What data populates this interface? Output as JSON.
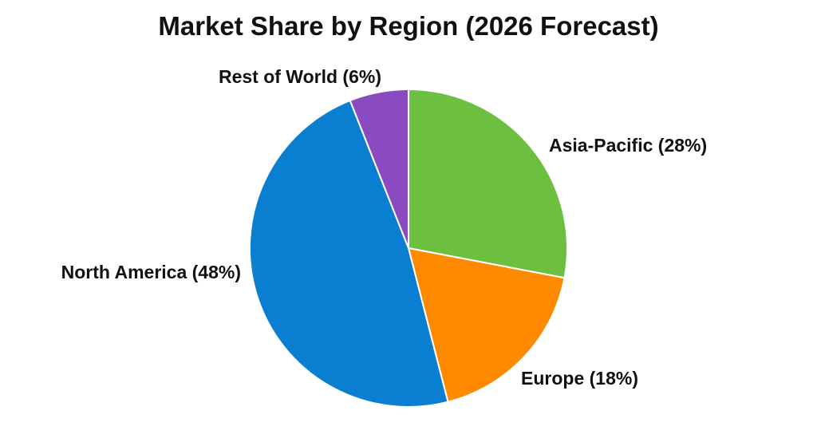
{
  "chart_data": {
    "type": "pie",
    "title": "Market Share by Region (2026 Forecast)",
    "unit": "%",
    "slices": [
      {
        "label": "Asia-Pacific (28%)",
        "name": "Asia-Pacific",
        "value": 28,
        "color": "#6dbf3f"
      },
      {
        "label": "Europe (18%)",
        "name": "Europe",
        "value": 18,
        "color": "#ff8a00"
      },
      {
        "label": "North America (48%)",
        "name": "North America",
        "value": 48,
        "color": "#0a7fd1"
      },
      {
        "label": "Rest of World (6%)",
        "name": "Rest of World",
        "value": 6,
        "color": "#8a4bc0"
      }
    ],
    "start_angle_deg": 0,
    "direction": "clockwise",
    "legend": "none"
  }
}
